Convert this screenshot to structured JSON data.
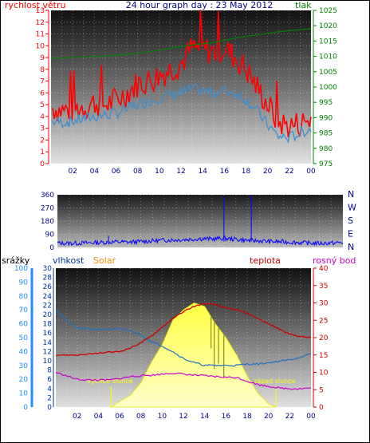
{
  "chart_data": [
    {
      "type": "line",
      "title": "24 hour graph day : 23 May 2012",
      "left_axis_label": "rychlost větru",
      "right_axis_label": "tlak",
      "x_ticks": [
        "02",
        "04",
        "06",
        "08",
        "10",
        "12",
        "14",
        "16",
        "18",
        "20",
        "22",
        "00"
      ],
      "left_ylim": [
        0,
        13
      ],
      "left_ticks": [
        0,
        1,
        2,
        3,
        4,
        5,
        6,
        7,
        8,
        9,
        10,
        11,
        12,
        13
      ],
      "right_ylim": [
        975,
        1025
      ],
      "right_ticks": [
        975,
        980,
        985,
        990,
        995,
        1000,
        1005,
        1010,
        1015,
        1020,
        1025
      ],
      "colors": {
        "gust": "#ff0000",
        "wind": "#3b8fd0",
        "pressure": "#008000",
        "title": "#00008b",
        "left_label": "#ff0000",
        "right_label": "#008000"
      },
      "series": [
        {
          "axis": "left",
          "x": [
            0,
            1,
            2,
            3,
            4,
            5,
            6,
            7,
            8,
            9,
            10,
            11,
            12,
            13,
            14,
            15,
            16,
            17,
            18,
            19,
            20,
            21,
            22,
            23,
            24
          ],
          "values": [
            4.8,
            4.5,
            4.6,
            4.8,
            5.2,
            5.0,
            5.4,
            6.0,
            6.8,
            7.0,
            7.5,
            8.0,
            8.5,
            9.8,
            9.7,
            9.5,
            9.8,
            9.0,
            8.0,
            6.5,
            5.0,
            3.5,
            3.2,
            3.4,
            3.8
          ]
        },
        {
          "axis": "left",
          "x": [
            0,
            1,
            2,
            3,
            4,
            5,
            6,
            7,
            8,
            9,
            10,
            11,
            12,
            13,
            14,
            15,
            16,
            17,
            18,
            19,
            20,
            21,
            22,
            23,
            24
          ],
          "values": [
            3.6,
            3.5,
            3.6,
            3.8,
            4.0,
            4.1,
            4.3,
            4.6,
            5.0,
            5.3,
            5.6,
            5.8,
            6.0,
            6.3,
            6.2,
            6.0,
            6.2,
            6.0,
            5.5,
            4.5,
            3.3,
            2.3,
            2.2,
            2.6,
            3.0
          ]
        },
        {
          "axis": "right",
          "x": [
            0,
            1,
            2,
            3,
            4,
            5,
            6,
            7,
            8,
            9,
            10,
            11,
            12,
            13,
            14,
            15,
            16,
            17,
            18,
            19,
            20,
            21,
            22,
            23,
            24
          ],
          "values": [
            1009.3,
            1009.5,
            1009.7,
            1009.8,
            1010,
            1010.1,
            1010.4,
            1010.7,
            1011,
            1011.5,
            1012,
            1012.6,
            1013.2,
            1013.7,
            1014.1,
            1014.5,
            1015.2,
            1016,
            1016.5,
            1017,
            1017.5,
            1018,
            1018.4,
            1018.7,
            1019
          ]
        }
      ]
    },
    {
      "type": "line",
      "x_ticks": [
        "02",
        "04",
        "06",
        "08",
        "10",
        "12",
        "14",
        "16",
        "18",
        "20",
        "22",
        "00"
      ],
      "left_ylim": [
        0,
        360
      ],
      "left_ticks": [
        0,
        90,
        180,
        270,
        360
      ],
      "compass": [
        "N",
        "W",
        "S",
        "E",
        "N"
      ],
      "colors": {
        "direction": "#0000ff",
        "compass": "#00008b"
      },
      "series": [
        {
          "x": [
            0,
            1,
            2,
            3,
            4,
            5,
            6,
            7,
            8,
            9,
            10,
            11,
            12,
            13,
            14,
            15,
            16,
            17,
            18,
            19,
            20,
            21,
            22,
            23,
            24
          ],
          "values": [
            30,
            28,
            30,
            32,
            35,
            38,
            36,
            40,
            45,
            50,
            52,
            55,
            60,
            58,
            62,
            56,
            48,
            45,
            40,
            38,
            35,
            30,
            28,
            30,
            32
          ]
        }
      ]
    },
    {
      "type": "line",
      "labels": {
        "rain": "srážky",
        "humidity": "vlhkost",
        "solar": "Solar",
        "temperature": "teplota",
        "dewpoint": "rosný bod"
      },
      "x_ticks": [
        "02",
        "04",
        "06",
        "08",
        "10",
        "12",
        "14",
        "16",
        "18",
        "20",
        "22",
        "00"
      ],
      "rain_ticks": [
        0,
        10,
        20,
        30,
        40,
        50,
        60,
        70,
        80,
        90,
        100
      ],
      "humidity_ticks": [
        0,
        2,
        4,
        6,
        8,
        10,
        12,
        14,
        16,
        18,
        20,
        22,
        24,
        26,
        28,
        30
      ],
      "temp_ticks": [
        0,
        5,
        10,
        15,
        20,
        25,
        30,
        35,
        40
      ],
      "rain_ylim": [
        0,
        100
      ],
      "humidity_ylim": [
        0,
        30
      ],
      "temp_ylim": [
        0,
        40
      ],
      "sunrise_label": "východ slunce",
      "sunset_label": "západ slunce",
      "sunrise_x": 5.2,
      "sunset_x": 20.7,
      "colors": {
        "rain_axis": "#1e90ff",
        "humidity_axis": "#003399",
        "solar_label": "#ff8c00",
        "temperature": "#cc0000",
        "dewpoint": "#cc00cc",
        "humidity": "#1f6fc2",
        "solar_fill": "#ffff66",
        "sun_labels": "#ffff00"
      },
      "series": [
        {
          "name": "teplota",
          "x": [
            0,
            1,
            2,
            3,
            4,
            5,
            6,
            7,
            8,
            9,
            10,
            11,
            12,
            13,
            14,
            15,
            16,
            17,
            18,
            19,
            20,
            21,
            22,
            23,
            24
          ],
          "values": [
            15,
            15,
            15,
            15.2,
            15.5,
            15.8,
            16,
            17,
            18.5,
            20.5,
            23,
            25.5,
            27.5,
            29,
            29.8,
            29.5,
            28.5,
            28,
            27,
            25.5,
            24,
            22.5,
            21,
            20.3,
            20
          ]
        },
        {
          "name": "rosný bod",
          "x": [
            0,
            1,
            2,
            3,
            4,
            5,
            6,
            7,
            8,
            9,
            10,
            11,
            12,
            13,
            14,
            15,
            16,
            17,
            18,
            19,
            20,
            21,
            22,
            23,
            24
          ],
          "values": [
            10,
            9,
            8,
            7.8,
            7.8,
            7.8,
            8.2,
            8.8,
            9,
            9.2,
            9.5,
            9.8,
            9.5,
            9.2,
            9,
            8.8,
            8.6,
            8.5,
            7.5,
            6.5,
            6,
            5.5,
            5.3,
            5.3,
            5.5
          ]
        },
        {
          "name": "vlhkost",
          "x": [
            0,
            1,
            2,
            3,
            4,
            5,
            6,
            7,
            8,
            9,
            10,
            11,
            12,
            13,
            14,
            15,
            16,
            17,
            18,
            19,
            20,
            21,
            22,
            23,
            24
          ],
          "values": [
            71,
            62,
            57,
            56,
            56,
            56,
            56,
            55,
            52,
            47,
            44,
            40,
            35,
            32,
            30,
            30,
            30,
            30,
            31,
            31,
            32,
            33,
            34,
            36,
            38
          ]
        },
        {
          "name": "Solar",
          "x": [
            5.2,
            6,
            7,
            8,
            9,
            10,
            11,
            12,
            13,
            14,
            15,
            16,
            17,
            18,
            19,
            20,
            20.7
          ],
          "values": [
            0,
            8,
            17,
            35,
            65,
            90,
            125,
            140,
            150,
            145,
            120,
            100,
            75,
            45,
            20,
            5,
            0
          ]
        }
      ]
    }
  ]
}
